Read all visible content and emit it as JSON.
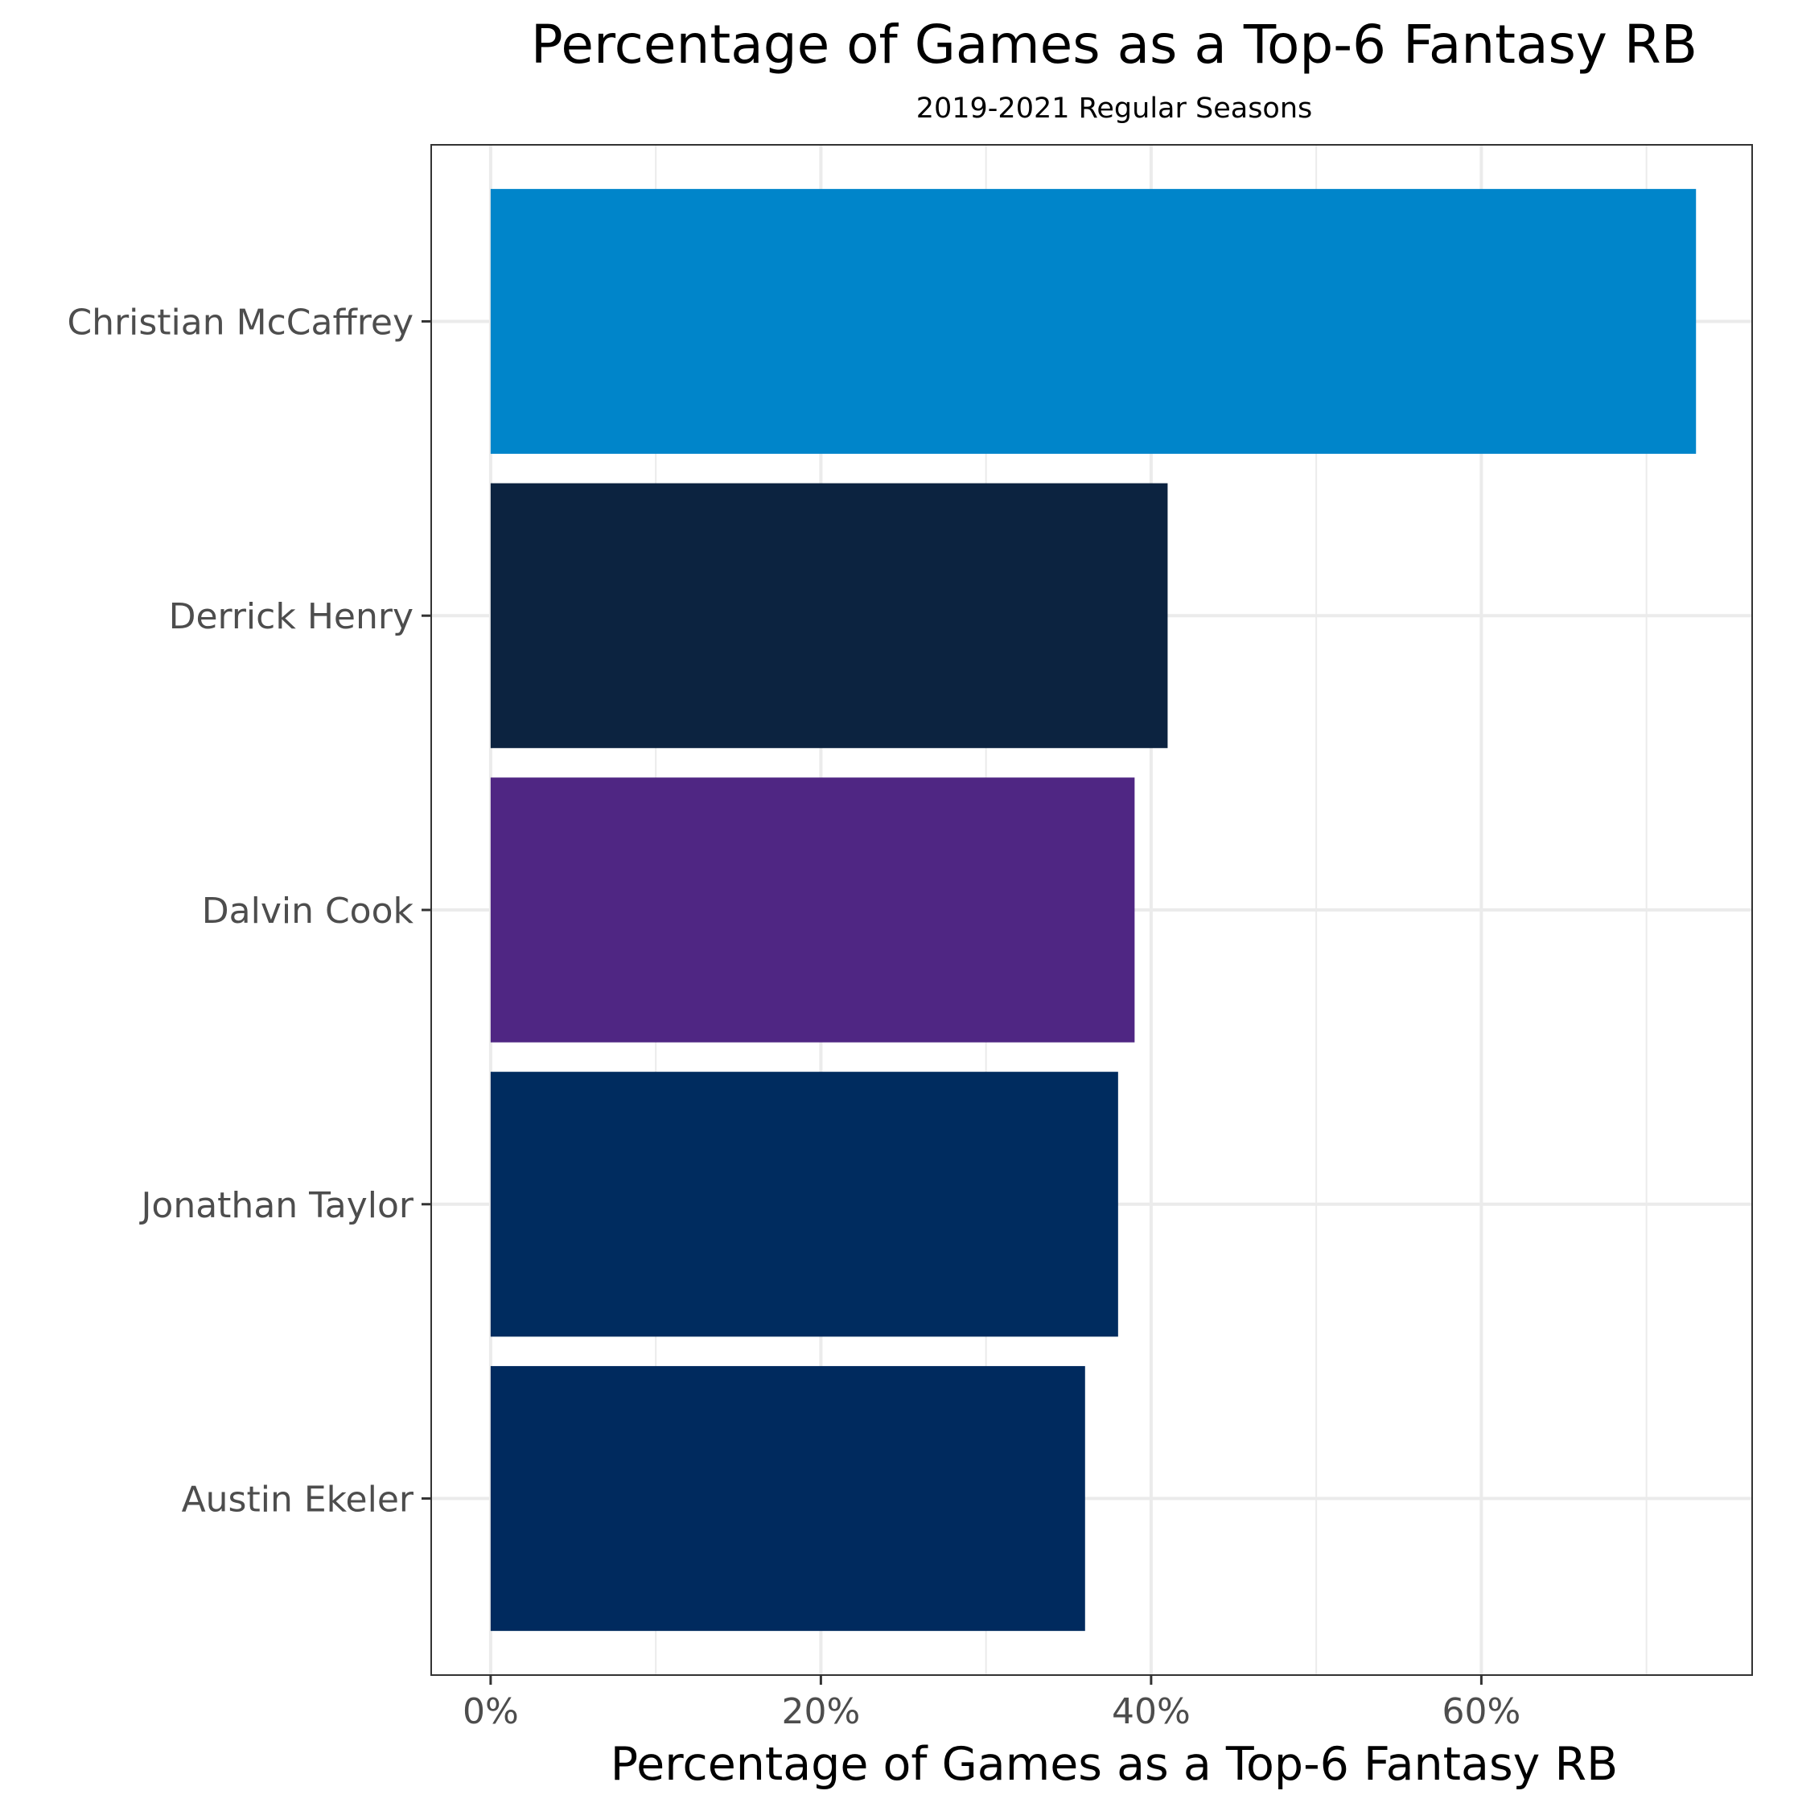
{
  "chart_data": {
    "type": "bar",
    "orientation": "horizontal",
    "title": "Percentage of Games as a Top-6 Fantasy RB",
    "subtitle": "2019-2021 Regular Seasons",
    "xlabel": "Percentage of Games as a Top-6 Fantasy RB",
    "ylabel": "",
    "xlim": [
      -3.6,
      76.4
    ],
    "x_ticks": [
      0,
      20,
      40,
      60
    ],
    "x_tick_labels": [
      "0%",
      "20%",
      "40%",
      "60%"
    ],
    "grid": true,
    "legend": "none",
    "categories": [
      "Christian McCaffrey",
      "Derrick Henry",
      "Dalvin Cook",
      "Jonathan Taylor",
      "Austin Ekeler"
    ],
    "values": [
      73,
      41,
      39,
      38,
      36
    ],
    "colors": [
      "#0085CA",
      "#0C2340",
      "#4F2683",
      "#002C5F",
      "#002A5E"
    ]
  }
}
